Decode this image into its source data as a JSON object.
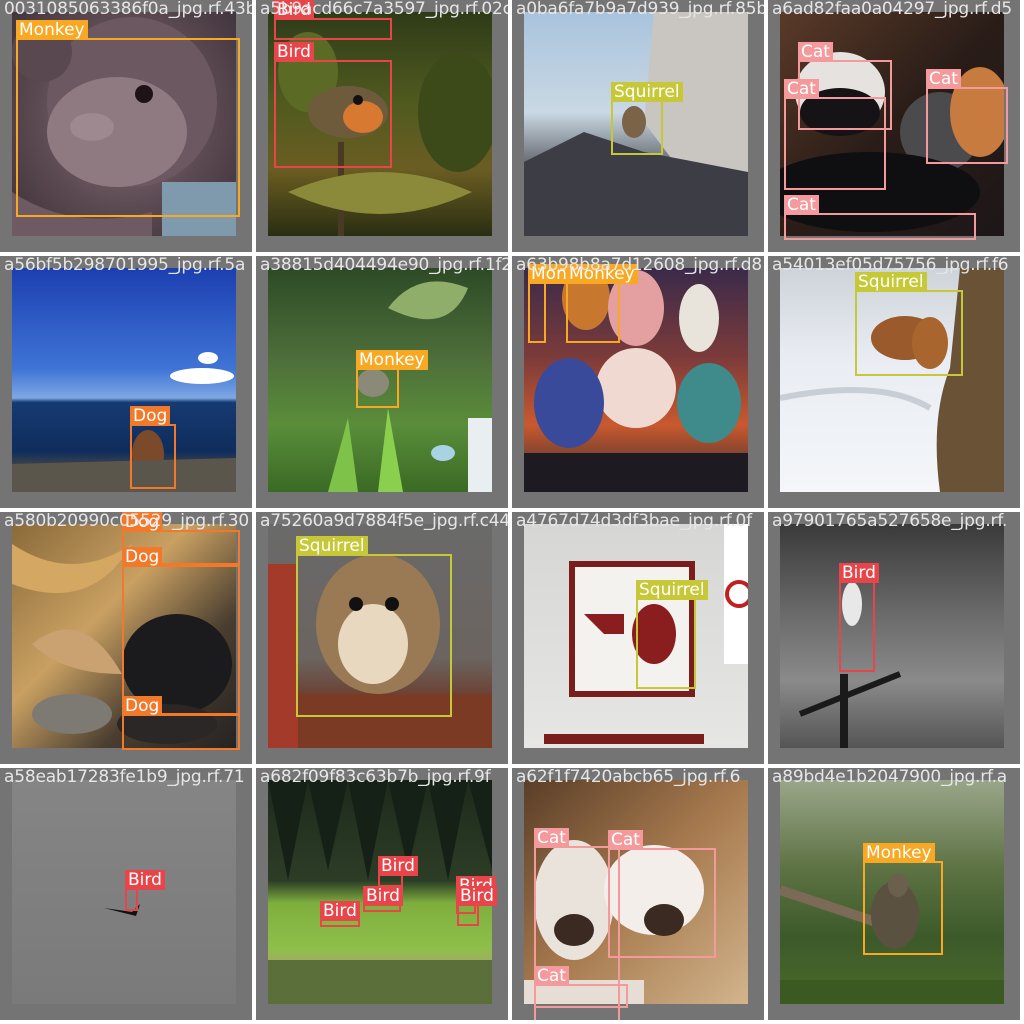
{
  "colors": {
    "Monkey": "#f8a823",
    "Bird": "#e8454a",
    "Squirrel": "#c7c837",
    "Cat": "#f59a9c",
    "Dog": "#f2782a"
  },
  "tiles": [
    {
      "filename": "0031085063386f0a_jpg.rf.43b",
      "boxes": [
        {
          "label": "Monkey"
        }
      ]
    },
    {
      "filename": "a5b9acd66c7a3597_jpg.rf.02c",
      "boxes": [
        {
          "label": "Bird"
        },
        {
          "label": "Bird"
        }
      ]
    },
    {
      "filename": "a0ba6fa7b9a7d939_jpg.rf.85b",
      "boxes": [
        {
          "label": "Squirrel"
        }
      ]
    },
    {
      "filename": "a6ad82faa0a04297_jpg.rf.d5",
      "boxes": [
        {
          "label": "Cat"
        },
        {
          "label": "Cat"
        },
        {
          "label": "Cat"
        },
        {
          "label": "Cat"
        }
      ]
    },
    {
      "filename": "a56bf5b298701995_jpg.rf.5a",
      "boxes": [
        {
          "label": "Dog"
        }
      ]
    },
    {
      "filename": "a38815d404494e90_jpg.rf.1f2",
      "boxes": [
        {
          "label": "Monkey"
        }
      ]
    },
    {
      "filename": "a63b98b8a7d12608_jpg.rf.d8",
      "boxes": [
        {
          "label": "Monkey"
        },
        {
          "label": "Monkey"
        }
      ]
    },
    {
      "filename": "a54013ef05d75756_jpg.rf.f6",
      "boxes": [
        {
          "label": "Squirrel"
        }
      ]
    },
    {
      "filename": "a580b20990c05529_jpg.rf.30",
      "boxes": [
        {
          "label": "Dog"
        },
        {
          "label": "Dog"
        },
        {
          "label": "Dog"
        }
      ]
    },
    {
      "filename": "a75260a9d7884f5e_jpg.rf.c44",
      "boxes": [
        {
          "label": "Squirrel"
        }
      ]
    },
    {
      "filename": "a4767d74d3df3bae_jpg.rf.0f",
      "boxes": [
        {
          "label": "Squirrel"
        }
      ]
    },
    {
      "filename": "a97901765a527658e_jpg.rf.",
      "boxes": [
        {
          "label": "Bird"
        }
      ]
    },
    {
      "filename": "a58eab17283fe1b9_jpg.rf.71",
      "boxes": [
        {
          "label": "Bird"
        }
      ]
    },
    {
      "filename": "a682f09f83c63b7b_jpg.rf.9f",
      "boxes": [
        {
          "label": "Bird"
        },
        {
          "label": "Bird"
        },
        {
          "label": "Bird"
        },
        {
          "label": "Bird"
        },
        {
          "label": "Bird"
        }
      ]
    },
    {
      "filename": "a62f1f7420abcb65_jpg.rf.6",
      "boxes": [
        {
          "label": "Cat"
        },
        {
          "label": "Cat"
        },
        {
          "label": "Cat"
        }
      ]
    },
    {
      "filename": "a89bd4e1b2047900_jpg.rf.a",
      "boxes": [
        {
          "label": "Monkey"
        }
      ]
    }
  ]
}
